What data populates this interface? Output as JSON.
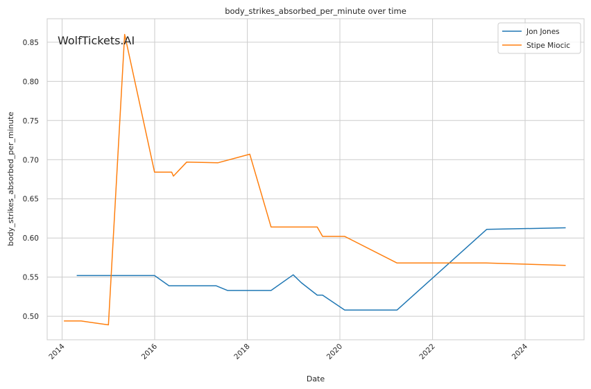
{
  "watermark": "WolfTickets.AI",
  "colors": {
    "jon_jones": "#1f77b4",
    "stipe_miocic": "#ff7f0e",
    "grid": "#cccccc",
    "axes_edge": "#cccccc",
    "watermark": "#b0b0b0"
  },
  "chart_data": {
    "type": "line",
    "title": "body_strikes_absorbed_per_minute over time",
    "xlabel": "Date",
    "ylabel": "body_strikes_absorbed_per_minute",
    "xlim": [
      "2013-09-05",
      "2025-04-10"
    ],
    "ylim": [
      0.47,
      0.88
    ],
    "grid": true,
    "legend": "top-right",
    "x_ticks": [
      "2014",
      "2016",
      "2018",
      "2020",
      "2022",
      "2024"
    ],
    "y_ticks": [
      "0.50",
      "0.55",
      "0.60",
      "0.65",
      "0.70",
      "0.75",
      "0.80",
      "0.85"
    ],
    "series": [
      {
        "name": "Jon Jones",
        "color": "#1f77b4",
        "points": [
          [
            "2014-04-26",
            0.552
          ],
          [
            "2015-12-31",
            0.552
          ],
          [
            "2016-04-23",
            0.539
          ],
          [
            "2017-04-29",
            0.539
          ],
          [
            "2017-07-29",
            0.533
          ],
          [
            "2018-07-07",
            0.533
          ],
          [
            "2018-12-29",
            0.553
          ],
          [
            "2019-03-02",
            0.543
          ],
          [
            "2019-07-06",
            0.527
          ],
          [
            "2019-08-17",
            0.527
          ],
          [
            "2020-02-08",
            0.508
          ],
          [
            "2021-03-27",
            0.508
          ],
          [
            "2023-03-04",
            0.611
          ],
          [
            "2024-11-16",
            0.613
          ]
        ]
      },
      {
        "name": "Stipe Miocic",
        "color": "#ff7f0e",
        "points": [
          [
            "2014-01-15",
            0.494
          ],
          [
            "2014-05-31",
            0.494
          ],
          [
            "2015-01-01",
            0.489
          ],
          [
            "2015-05-09",
            0.86
          ],
          [
            "2015-12-31",
            0.684
          ],
          [
            "2016-05-14",
            0.684
          ],
          [
            "2016-05-28",
            0.679
          ],
          [
            "2016-09-10",
            0.697
          ],
          [
            "2017-05-13",
            0.696
          ],
          [
            "2018-01-20",
            0.707
          ],
          [
            "2018-07-07",
            0.614
          ],
          [
            "2019-07-06",
            0.614
          ],
          [
            "2019-08-17",
            0.602
          ],
          [
            "2020-02-08",
            0.602
          ],
          [
            "2021-03-27",
            0.568
          ],
          [
            "2023-03-01",
            0.568
          ],
          [
            "2024-11-16",
            0.565
          ]
        ]
      }
    ]
  }
}
